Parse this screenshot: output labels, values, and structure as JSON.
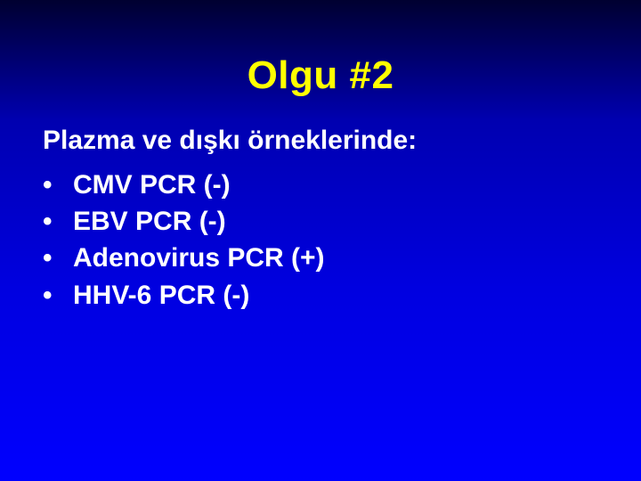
{
  "title": {
    "text": "Olgu #2",
    "color": "#ffff00",
    "fontsize": 44
  },
  "content": {
    "intro": "Plazma ve dışkı örneklerinde:",
    "bullets": [
      "CMV PCR (-)",
      "EBV PCR (-)",
      "Adenovirus PCR (+)",
      "HHV-6 PCR (-)"
    ],
    "text_color": "#ffffff",
    "fontsize": 30
  },
  "background": {
    "gradient_top": "#000030",
    "gradient_bottom": "#0000ff"
  }
}
